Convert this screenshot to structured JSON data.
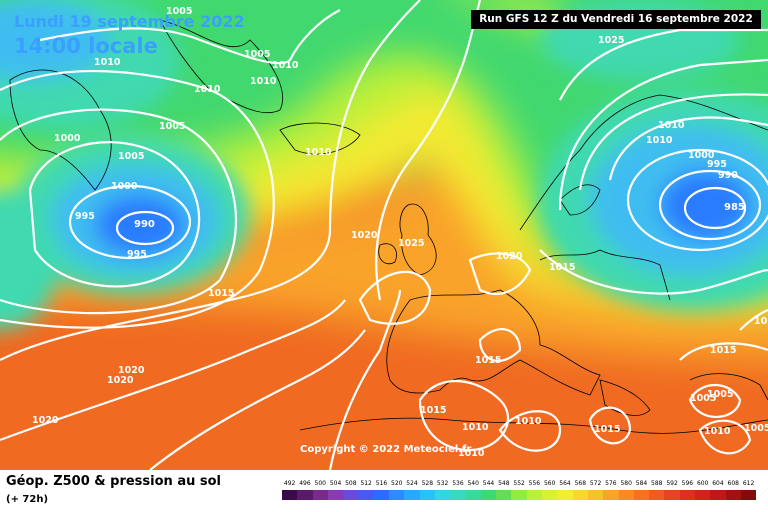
{
  "header": {
    "date_title": "Lundi 19 septembre 2022",
    "local_time": "14:00 locale",
    "run_info": "Run GFS 12 Z du Vendredi 16 septembre 2022"
  },
  "footer": {
    "product_title": "Géop. Z500 & pression au sol",
    "forecast_hour": "(+ 72h)",
    "copyright": "Copyright © 2022 Meteociel.fr"
  },
  "isobar_labels": [
    "1005",
    "1010",
    "1005",
    "1010",
    "1010",
    "1010",
    "1005",
    "1000",
    "1005",
    "1000",
    "995",
    "990",
    "995",
    "1010",
    "1025",
    "1010",
    "1010",
    "1000",
    "995",
    "990",
    "985",
    "1020",
    "1025",
    "1020",
    "1015",
    "1015",
    "1020",
    "1020",
    "1015",
    "1015",
    "1015",
    "1020",
    "1010",
    "1015",
    "1010",
    "1010",
    "1005",
    "1010",
    "1005",
    "1015",
    "1005",
    "1010"
  ],
  "pressure_centers": [
    {
      "label": "990",
      "type": "low"
    },
    {
      "label": "985",
      "type": "low"
    }
  ],
  "colors": {
    "low_deep": "#2b7cff",
    "low": "#3fbdf0",
    "cool": "#3fd9b0",
    "mid": "#41d870",
    "lime": "#b7f03a",
    "yellow": "#f5ea32",
    "orange": "#f9a32a",
    "warm": "#f06a20",
    "hot": "#e0301c"
  },
  "scale": {
    "labels": [
      "492",
      "496",
      "500",
      "504",
      "508",
      "512",
      "516",
      "520",
      "524",
      "528",
      "532",
      "536",
      "540",
      "544",
      "548",
      "552",
      "556",
      "560",
      "564",
      "568",
      "572",
      "576",
      "580",
      "584",
      "588",
      "592",
      "596",
      "600",
      "604",
      "608",
      "612"
    ],
    "colors": [
      "#3a0a4a",
      "#5a1a6a",
      "#7a2a8e",
      "#8a3ab4",
      "#6a4ad8",
      "#4a5af0",
      "#2a6cff",
      "#2a8cff",
      "#2aa8ff",
      "#2ac0f8",
      "#32d4e8",
      "#3ad8c0",
      "#3ad89a",
      "#40d870",
      "#60e050",
      "#90ec40",
      "#b8f03a",
      "#d8f036",
      "#f2ec32",
      "#f8d830",
      "#fac02c",
      "#f9a32a",
      "#f88a26",
      "#f47222",
      "#ee5c1e",
      "#e6461c",
      "#dc321a",
      "#d02418",
      "#c01818",
      "#a01212",
      "#800c0c"
    ]
  }
}
